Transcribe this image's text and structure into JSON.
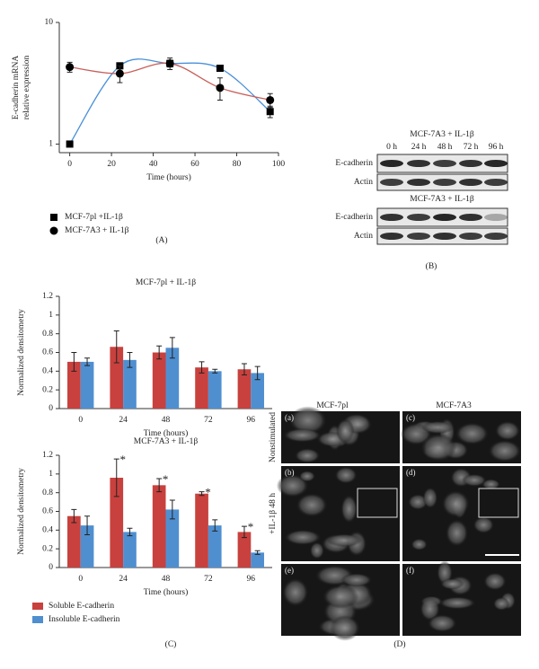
{
  "figure": {
    "panel_labels": [
      "(A)",
      "(B)",
      "(C)",
      "(D)"
    ],
    "blot": {
      "title_top": "MCF-7A3 + IL-1β",
      "times": [
        "0 h",
        "24 h",
        "48 h",
        "72 h",
        "96 h"
      ],
      "rows_top": [
        "E-cadherin",
        "Actin"
      ],
      "title_bottom": "MCF-7A3 + IL-1β",
      "rows_bottom": [
        "E-cadherin",
        "Actin"
      ]
    },
    "micrographs": {
      "columns": [
        "MCF-7pl",
        "MCF-7A3"
      ],
      "rows": [
        "Nonstimulated",
        "+IL-1β 48 h"
      ],
      "subpanels": [
        "(a)",
        "(c)",
        "(b)",
        "(d)",
        "(e)",
        "(f)"
      ]
    }
  },
  "chart_data": [
    {
      "type": "line",
      "y_label": [
        "E-cadherin mRNA",
        "relative expression"
      ],
      "x_label": "Time (hours)",
      "log_y": true,
      "smooth": true,
      "legend": "below",
      "marker_color": "#000000",
      "xlim": [
        -5,
        100
      ],
      "xticks": [
        0,
        20,
        40,
        60,
        80,
        100
      ],
      "ylim": [
        0.85,
        10
      ],
      "yticks": [
        1,
        10
      ],
      "series": [
        {
          "name": "MCF-7pl +IL-1β",
          "color": "#4a90d9",
          "marker": "square",
          "x": [
            0,
            24,
            48,
            72,
            96
          ],
          "values": [
            1.0,
            4.4,
            4.6,
            4.2,
            1.85
          ],
          "errors": [
            null,
            null,
            0.3,
            null,
            0.2
          ]
        },
        {
          "name": "MCF-7A3 + IL-1β",
          "color": "#c8605a",
          "marker": "circle",
          "x": [
            0,
            24,
            48,
            72,
            96
          ],
          "values": [
            4.3,
            3.8,
            4.6,
            2.9,
            2.3
          ],
          "errors": [
            0.4,
            0.6,
            0.5,
            0.6,
            0.3
          ]
        }
      ]
    },
    {
      "type": "bar",
      "title": "MCF-7pl + IL-1β",
      "x_label": "Time (hours)",
      "y_label": "Normalized densitometry",
      "categories": [
        "0",
        "24",
        "48",
        "72",
        "96"
      ],
      "ylim": [
        0,
        1.2
      ],
      "yticks": [
        0,
        0.2,
        0.4,
        0.6,
        0.8,
        1,
        1.2
      ],
      "series": [
        {
          "color": "#c8413e",
          "values": [
            0.5,
            0.66,
            0.6,
            0.44,
            0.42
          ],
          "errors": [
            0.1,
            0.17,
            0.07,
            0.06,
            0.06
          ]
        },
        {
          "color": "#4f8fd0",
          "values": [
            0.5,
            0.52,
            0.65,
            0.4,
            0.38
          ],
          "errors": [
            0.04,
            0.08,
            0.11,
            0.02,
            0.07
          ]
        }
      ]
    },
    {
      "type": "bar",
      "title": "MCF-7A3 + IL-1β",
      "x_label": "Time (hours)",
      "y_label": "Normalized densitometry",
      "categories": [
        "0",
        "24",
        "48",
        "72",
        "96"
      ],
      "ylim": [
        0,
        1.2
      ],
      "yticks": [
        0,
        0.2,
        0.4,
        0.6,
        0.8,
        1,
        1.2
      ],
      "legend": "below",
      "series": [
        {
          "name": "Soluble E-cadherin",
          "color": "#c8413e",
          "values": [
            0.55,
            0.96,
            0.88,
            0.79,
            0.38
          ],
          "errors": [
            0.07,
            0.2,
            0.07,
            0.02,
            0.06
          ],
          "significance": [
            null,
            "*",
            "*",
            "*",
            "*"
          ]
        },
        {
          "name": "Insoluble E-cadherin",
          "color": "#4f8fd0",
          "values": [
            0.45,
            0.38,
            0.62,
            0.45,
            0.16
          ],
          "errors": [
            0.1,
            0.04,
            0.1,
            0.06,
            0.02
          ]
        }
      ]
    }
  ]
}
